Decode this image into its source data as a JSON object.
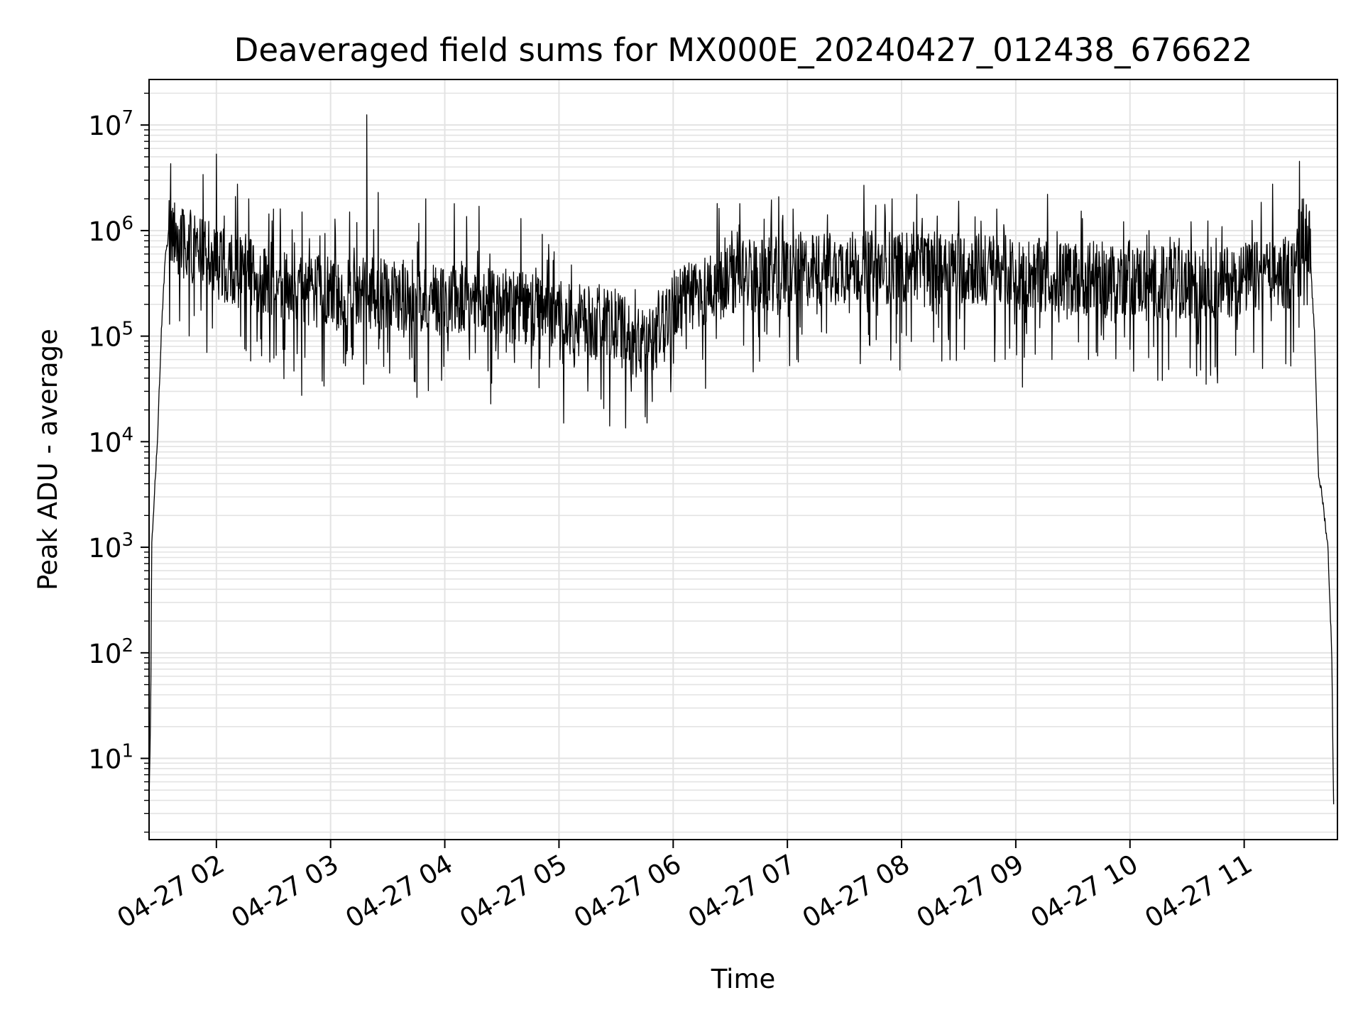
{
  "chart_data": {
    "type": "line",
    "title": "Deaveraged field sums for MX000E_20240427_012438_676622",
    "xlabel": "Time",
    "ylabel": "Peak ADU - average",
    "yscale": "log",
    "ylim": [
      1.7,
      27000000
    ],
    "xlim": [
      "2024-04-27 01:24:38",
      "2024-04-27 11:49:00"
    ],
    "grid": true,
    "x_ticks": [
      "04-27 02",
      "04-27 03",
      "04-27 04",
      "04-27 05",
      "04-27 06",
      "04-27 07",
      "04-27 08",
      "04-27 09",
      "04-27 10",
      "04-27 11"
    ],
    "y_ticks": [
      {
        "base": "10",
        "exp": "1"
      },
      {
        "base": "10",
        "exp": "2"
      },
      {
        "base": "10",
        "exp": "3"
      },
      {
        "base": "10",
        "exp": "4"
      },
      {
        "base": "10",
        "exp": "5"
      },
      {
        "base": "10",
        "exp": "6"
      },
      {
        "base": "10",
        "exp": "7"
      }
    ],
    "series": [
      {
        "color": "#000000",
        "baseline_points": [
          [
            "2024-04-27 01:24:38",
            3.5
          ],
          [
            "2024-04-27 01:25:30",
            30
          ],
          [
            "2024-04-27 01:26:00",
            1000
          ],
          [
            "2024-04-27 01:27:00",
            2000
          ],
          [
            "2024-04-27 01:28:00",
            5000
          ],
          [
            "2024-04-27 01:29:00",
            10000
          ],
          [
            "2024-04-27 01:31:00",
            100000
          ],
          [
            "2024-04-27 01:33:00",
            500000
          ],
          [
            "2024-04-27 01:35:00",
            1000000
          ],
          [
            "2024-04-27 01:40:00",
            800000
          ],
          [
            "2024-04-27 02:00:00",
            500000
          ],
          [
            "2024-04-27 02:30:00",
            300000
          ],
          [
            "2024-04-27 03:00:00",
            250000
          ],
          [
            "2024-04-27 03:30:00",
            250000
          ],
          [
            "2024-04-27 04:00:00",
            220000
          ],
          [
            "2024-04-27 04:30:00",
            200000
          ],
          [
            "2024-04-27 05:00:00",
            150000
          ],
          [
            "2024-04-27 05:30:00",
            120000
          ],
          [
            "2024-04-27 05:45:00",
            80000
          ],
          [
            "2024-04-27 06:00:00",
            200000
          ],
          [
            "2024-04-27 06:30:00",
            350000
          ],
          [
            "2024-04-27 07:00:00",
            400000
          ],
          [
            "2024-04-27 07:30:00",
            450000
          ],
          [
            "2024-04-27 08:00:00",
            450000
          ],
          [
            "2024-04-27 08:30:00",
            450000
          ],
          [
            "2024-04-27 09:00:00",
            400000
          ],
          [
            "2024-04-27 09:30:00",
            350000
          ],
          [
            "2024-04-27 10:00:00",
            350000
          ],
          [
            "2024-04-27 10:30:00",
            300000
          ],
          [
            "2024-04-27 11:00:00",
            350000
          ],
          [
            "2024-04-27 11:25:00",
            400000
          ],
          [
            "2024-04-27 11:30:00",
            1000000
          ],
          [
            "2024-04-27 11:34:00",
            900000
          ],
          [
            "2024-04-27 11:37:00",
            100000
          ],
          [
            "2024-04-27 11:39:00",
            5000
          ],
          [
            "2024-04-27 11:41:00",
            3000
          ],
          [
            "2024-04-27 11:44:00",
            1000
          ],
          [
            "2024-04-27 11:46:00",
            100
          ],
          [
            "2024-04-27 11:47:00",
            3.5
          ]
        ],
        "spikes": [
          [
            "2024-04-27 01:36:00",
            4300000
          ],
          [
            "2024-04-27 01:42:00",
            1600000
          ],
          [
            "2024-04-27 01:53:00",
            3400000
          ],
          [
            "2024-04-27 02:00:00",
            5300000
          ],
          [
            "2024-04-27 02:10:00",
            2100000
          ],
          [
            "2024-04-27 02:17:00",
            2000000
          ],
          [
            "2024-04-27 02:30:00",
            1600000
          ],
          [
            "2024-04-27 02:45:00",
            1500000
          ],
          [
            "2024-04-27 03:10:00",
            1500000
          ],
          [
            "2024-04-27 03:19:00",
            12500000
          ],
          [
            "2024-04-27 03:25:00",
            2300000
          ],
          [
            "2024-04-27 03:50:00",
            2000000
          ],
          [
            "2024-04-27 04:05:00",
            1800000
          ],
          [
            "2024-04-27 04:18:00",
            1700000
          ],
          [
            "2024-04-27 04:40:00",
            1300000
          ],
          [
            "2024-04-27 06:35:00",
            1800000
          ],
          [
            "2024-04-27 07:03:00",
            1600000
          ],
          [
            "2024-04-27 07:55:00",
            2000000
          ],
          [
            "2024-04-27 08:08:00",
            2200000
          ],
          [
            "2024-04-27 08:30:00",
            1900000
          ],
          [
            "2024-04-27 08:50:00",
            1600000
          ],
          [
            "2024-04-27 09:35:00",
            1300000
          ],
          [
            "2024-04-27 10:10:00",
            1000000
          ],
          [
            "2024-04-27 11:30:00",
            1500000
          ]
        ],
        "dips": [
          [
            "2024-04-27 01:55:00",
            70000
          ],
          [
            "2024-04-27 02:35:00",
            75000
          ],
          [
            "2024-04-27 03:30:00",
            70000
          ],
          [
            "2024-04-27 04:13:00",
            60000
          ],
          [
            "2024-04-27 05:02:00",
            55000
          ],
          [
            "2024-04-27 05:38:00",
            30000
          ],
          [
            "2024-04-27 05:49:00",
            24000
          ],
          [
            "2024-04-27 06:17:00",
            32000
          ],
          [
            "2024-04-27 07:05:00",
            60000
          ],
          [
            "2024-04-27 08:33:00",
            75000
          ],
          [
            "2024-04-27 09:19:00",
            60000
          ],
          [
            "2024-04-27 09:43:00",
            65000
          ],
          [
            "2024-04-27 10:00:00",
            75000
          ],
          [
            "2024-04-27 10:17:00",
            38000
          ],
          [
            "2024-04-27 10:35:00",
            42000
          ],
          [
            "2024-04-27 10:40:00",
            35000
          ],
          [
            "2024-04-27 10:46:00",
            36000
          ],
          [
            "2024-04-27 11:05:00",
            70000
          ]
        ]
      }
    ]
  }
}
